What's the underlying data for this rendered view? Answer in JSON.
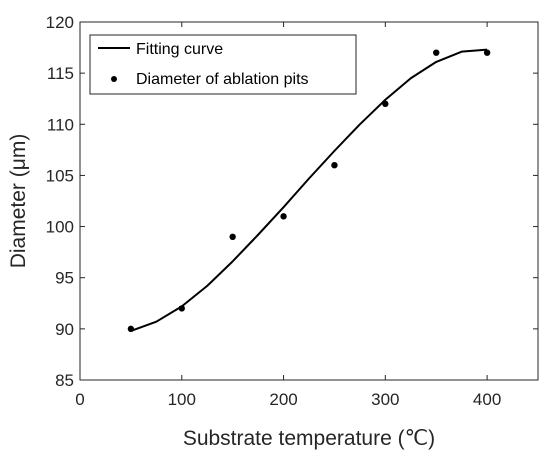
{
  "chart_data": {
    "type": "scatter",
    "title": "",
    "xlabel": "Substrate temperature (℃)",
    "ylabel": "Diameter (μm)",
    "xlim": [
      0,
      450
    ],
    "ylim": [
      85,
      120
    ],
    "xticks": [
      0,
      100,
      200,
      300,
      400
    ],
    "yticks": [
      85,
      90,
      95,
      100,
      105,
      110,
      115,
      120
    ],
    "grid": false,
    "legend_position": "top-left",
    "series": [
      {
        "name": "Fitting curve",
        "type": "line",
        "color": "#000000",
        "x": [
          50,
          75,
          100,
          125,
          150,
          175,
          200,
          225,
          250,
          275,
          300,
          325,
          350,
          375,
          400
        ],
        "y": [
          89.8,
          90.7,
          92.2,
          94.2,
          96.6,
          99.2,
          101.9,
          104.7,
          107.4,
          110.0,
          112.4,
          114.5,
          116.1,
          117.1,
          117.3
        ]
      },
      {
        "name": "Diameter of ablation pits",
        "type": "scatter",
        "color": "#000000",
        "x": [
          50,
          100,
          150,
          200,
          250,
          300,
          350,
          400
        ],
        "y": [
          90,
          92,
          99,
          101,
          106,
          112,
          117,
          117
        ]
      }
    ]
  }
}
